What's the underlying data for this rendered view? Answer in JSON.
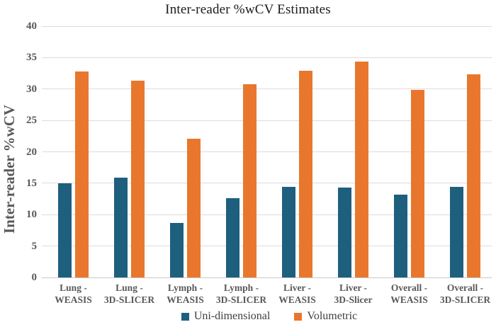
{
  "chart_data": {
    "type": "bar",
    "title": "Inter-reader %wCV Estimates",
    "ylabel": "Inter-reader %wCV",
    "xlabel": "",
    "ylim": [
      0,
      40
    ],
    "yticks": [
      0,
      5,
      10,
      15,
      20,
      25,
      30,
      35,
      40
    ],
    "grid": "horizontal-light",
    "legend_position": "bottom-center",
    "categories": [
      [
        "Lung -",
        "WEASIS"
      ],
      [
        "Lung -",
        "3D-SLICER"
      ],
      [
        "Lymph -",
        "WEASIS"
      ],
      [
        "Lymph -",
        "3D-SLICER"
      ],
      [
        "Liver -",
        "WEASIS"
      ],
      [
        "Liver -",
        "3D-Slicer"
      ],
      [
        "Overall -",
        "WEASIS"
      ],
      [
        "Overall -",
        "3D-SLICER"
      ]
    ],
    "series": [
      {
        "name": "Uni-dimensional",
        "color": "#1E5F7E",
        "values": [
          15.0,
          15.9,
          8.7,
          12.6,
          14.4,
          14.3,
          13.2,
          14.4
        ]
      },
      {
        "name": "Volumetric",
        "color": "#E8772D",
        "values": [
          32.8,
          31.3,
          22.1,
          30.8,
          32.9,
          34.4,
          29.9,
          32.3
        ]
      }
    ]
  }
}
